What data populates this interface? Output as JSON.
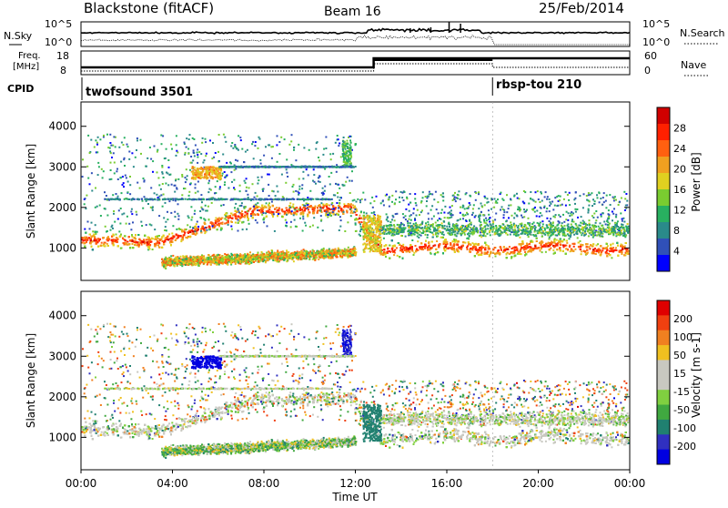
{
  "header": {
    "title": "Blackstone (fitACF)",
    "beam": "Beam 16",
    "date": "25/Feb/2014"
  },
  "sky_panel": {
    "left_label": "N.Sky",
    "right_label": "N.Search",
    "left_ticks": [
      "10^5",
      "10^0"
    ],
    "right_ticks": [
      "10^5",
      "10^0"
    ]
  },
  "freq_panel": {
    "left_label_1": "Freq.",
    "left_label_2": "[MHz]",
    "right_label": "Nave",
    "left_ticks": [
      "18",
      "8"
    ],
    "right_ticks": [
      "60",
      "0"
    ]
  },
  "cpid": {
    "label": "CPID",
    "mode_1": "twofsound 3501",
    "mode_2": "rbsp-tou 210",
    "switch_hour": 18.0
  },
  "chart_data": [
    {
      "type": "heatmap",
      "name": "power",
      "ylabel": "Slant Range [km]",
      "yticks": [
        1000,
        2000,
        3000,
        4000
      ],
      "ylim": [
        200,
        4600
      ],
      "xlim": [
        0,
        24
      ],
      "colorbar": {
        "label": "Power [dB]",
        "ticks": [
          "28",
          "24",
          "20",
          "16",
          "12",
          "8",
          "4"
        ],
        "colors": [
          "#0000ff",
          "#3050b8",
          "#2a8a8a",
          "#28b060",
          "#7acc30",
          "#e0d020",
          "#f0a020",
          "#ff6010",
          "#ff2000",
          "#d00000"
        ]
      }
    },
    {
      "type": "heatmap",
      "name": "velocity",
      "ylabel": "Slant Range [km]",
      "yticks": [
        1000,
        2000,
        3000,
        4000
      ],
      "ylim": [
        200,
        4600
      ],
      "xlim": [
        0,
        24
      ],
      "colorbar": {
        "label": "Velocity [m s-1]",
        "ticks": [
          "200",
          "100",
          "50",
          "15",
          "-15",
          "-50",
          "-100",
          "-200"
        ],
        "colors": [
          "#0000e0",
          "#3030c0",
          "#208070",
          "#40a840",
          "#80d040",
          "#c8c8c0",
          "#c8c8c0",
          "#f0c020",
          "#f08020",
          "#f04010",
          "#e00000"
        ]
      }
    }
  ],
  "xaxis": {
    "label": "Time UT",
    "ticks": [
      "00:00",
      "04:00",
      "08:00",
      "12:00",
      "16:00",
      "20:00",
      "00:00"
    ]
  }
}
